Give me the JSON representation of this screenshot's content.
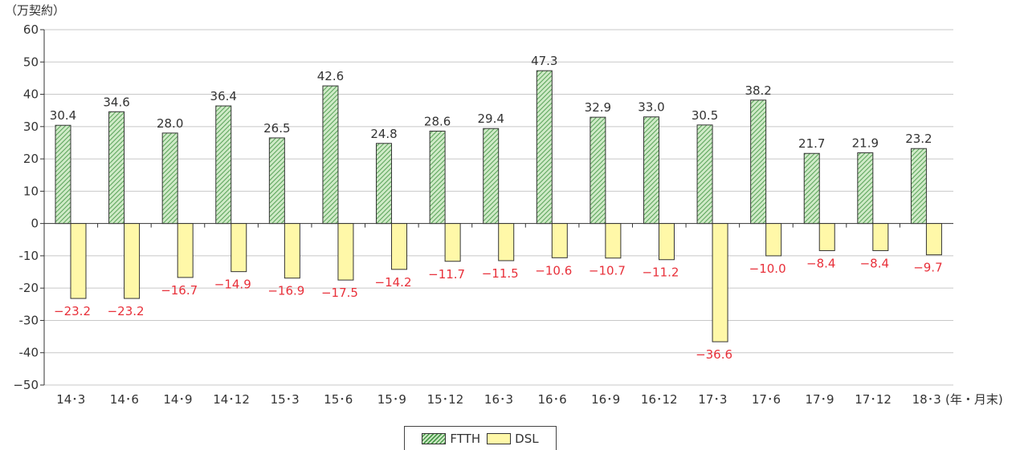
{
  "chart_data": {
    "type": "bar",
    "y_unit_label": "（万契約）",
    "x_unit_label": "(年・月末)",
    "categories": [
      "14･3",
      "14･6",
      "14･9",
      "14･12",
      "15･3",
      "15･6",
      "15･9",
      "15･12",
      "16･3",
      "16･6",
      "16･9",
      "16･12",
      "17･3",
      "17･6",
      "17･9",
      "17･12",
      "18･3"
    ],
    "series": [
      {
        "name": "FTTH",
        "values": [
          30.4,
          34.6,
          28.0,
          36.4,
          26.5,
          42.6,
          24.8,
          28.6,
          29.4,
          47.3,
          32.9,
          33.0,
          30.5,
          38.2,
          21.7,
          21.9,
          23.2
        ]
      },
      {
        "name": "DSL",
        "values": [
          -23.2,
          -23.2,
          -16.7,
          -14.9,
          -16.9,
          -17.5,
          -14.2,
          -11.7,
          -11.5,
          -10.6,
          -10.7,
          -11.2,
          -36.6,
          -10.0,
          -8.4,
          -8.4,
          -9.7
        ]
      }
    ],
    "value_labels": {
      "FTTH": [
        "30.4",
        "34.6",
        "28.0",
        "36.4",
        "26.5",
        "42.6",
        "24.8",
        "28.6",
        "29.4",
        "47.3",
        "32.9",
        "33.0",
        "30.5",
        "38.2",
        "21.7",
        "21.9",
        "23.2"
      ],
      "DSL": [
        "−23.2",
        "−23.2",
        "−16.7",
        "−14.9",
        "−16.9",
        "−17.5",
        "−14.2",
        "−11.7",
        "−11.5",
        "−10.6",
        "−10.7",
        "−11.2",
        "−36.6",
        "−10.0",
        "−8.4",
        "−8.4",
        "−9.7"
      ]
    },
    "y_ticks": [
      "60",
      "50",
      "40",
      "30",
      "20",
      "10",
      "0",
      "-10",
      "-20",
      "-30",
      "-40",
      "−50"
    ],
    "ylim": [
      -50,
      60
    ],
    "grid": true,
    "legend_position": "bottom-center",
    "colors": {
      "ftth_fill": "#cfeac7",
      "ftth_hatch": "#4a9a4a",
      "dsl_fill": "#fff8a8",
      "negative_label": "#e8303a",
      "grid": "#c8c8c8"
    }
  },
  "legend": {
    "ftth": "FTTH",
    "dsl": "DSL"
  }
}
